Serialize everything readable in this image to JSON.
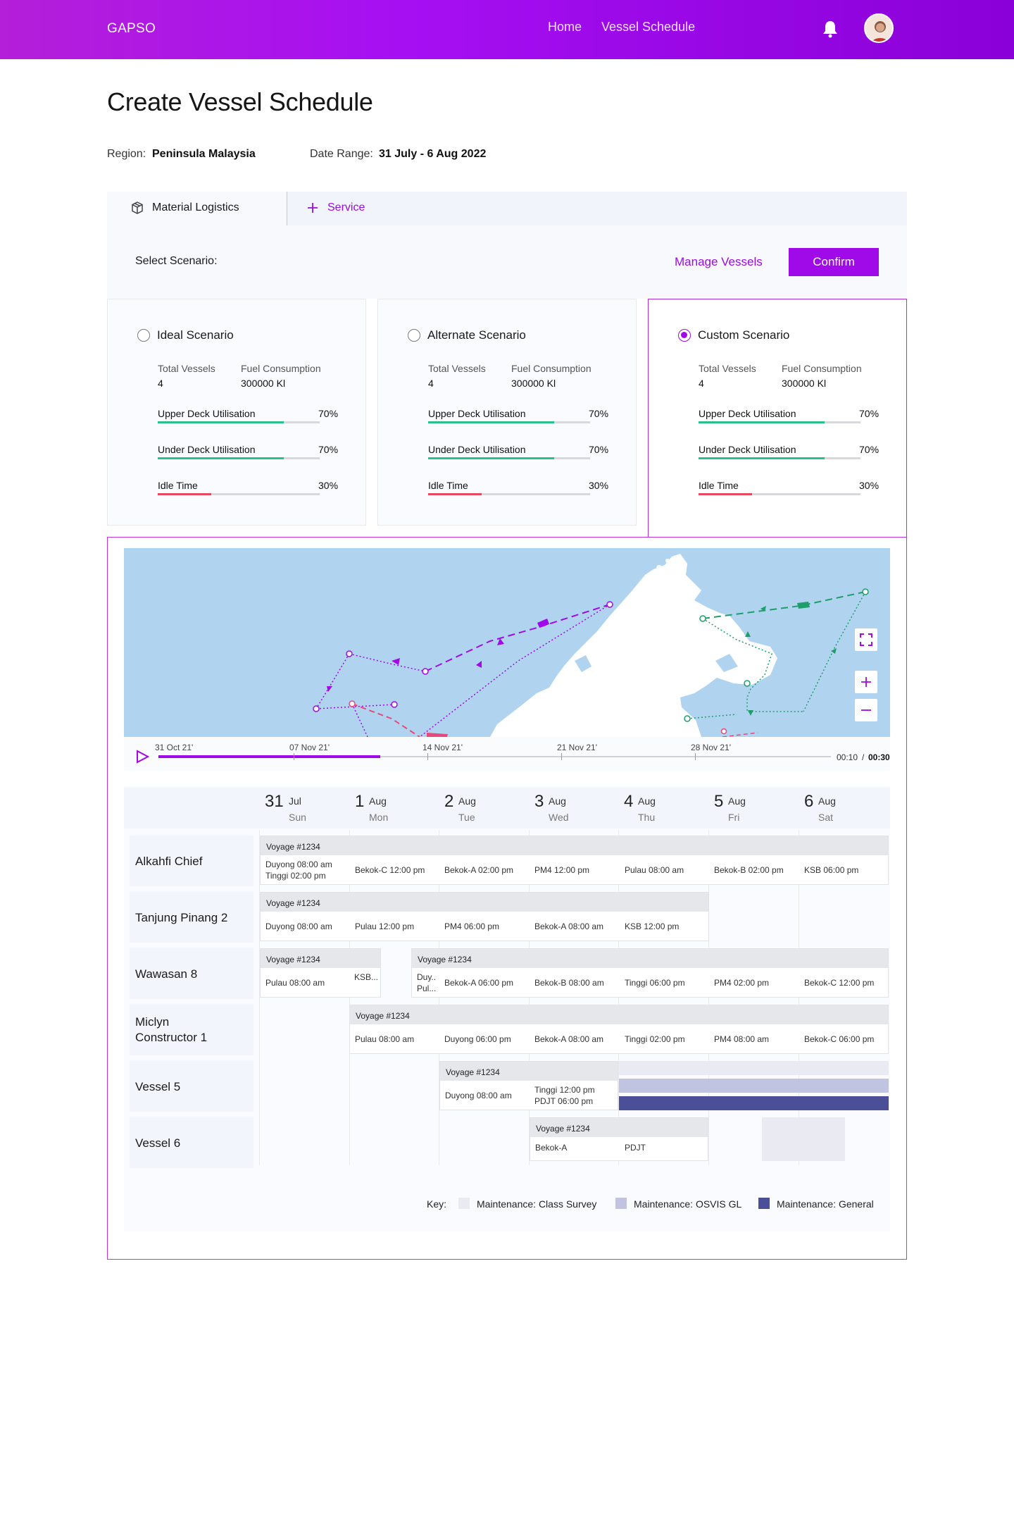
{
  "header": {
    "brand": "GAPSO",
    "nav": [
      "Home",
      "Vessel Schedule"
    ]
  },
  "page": {
    "title": "Create Vessel Schedule",
    "region_label": "Region:",
    "region_value": "Peninsula Malaysia",
    "date_label": "Date Range:",
    "date_value": "31 July - 6 Aug 2022"
  },
  "tabs": {
    "active": "Material Logistics",
    "add": "Service"
  },
  "toolbar": {
    "select_label": "Select Scenario:",
    "manage_label": "Manage Vessels",
    "confirm_label": "Confirm"
  },
  "scenarios": [
    {
      "name": "Ideal Scenario",
      "selected": false,
      "vessels_label": "Total Vessels",
      "vessels": "4",
      "fuel_label": "Fuel Consumption",
      "fuel": "300000 Kl",
      "upper_label": "Upper Deck Utilisation",
      "upper": "70%",
      "under_label": "Under Deck Utilisation",
      "under": "70%",
      "idle_label": "Idle Time",
      "idle": "30%"
    },
    {
      "name": "Alternate Scenario",
      "selected": false,
      "vessels_label": "Total Vessels",
      "vessels": "4",
      "fuel_label": "Fuel Consumption",
      "fuel": "300000 Kl",
      "upper_label": "Upper Deck Utilisation",
      "upper": "70%",
      "under_label": "Under Deck Utilisation",
      "under": "70%",
      "idle_label": "Idle Time",
      "idle": "30%"
    },
    {
      "name": "Custom Scenario",
      "selected": true,
      "vessels_label": "Total Vessels",
      "vessels": "4",
      "fuel_label": "Fuel Consumption",
      "fuel": "300000 Kl",
      "upper_label": "Upper Deck Utilisation",
      "upper": "70%",
      "under_label": "Under Deck Utilisation",
      "under": "70%",
      "idle_label": "Idle Time",
      "idle": "30%"
    }
  ],
  "bar_colors": {
    "good": "#2bbf8a",
    "bad": "#e8485f",
    "accent": "#a10ae8"
  },
  "timeline": {
    "dates": [
      "31 Oct 21'",
      "07 Nov 21'",
      "14 Nov 21'",
      "21 Nov 21'",
      "28 Nov 21'"
    ],
    "current": "00:10",
    "separator": "/",
    "total": "00:30",
    "progress": 0.33
  },
  "schedule": {
    "days": [
      {
        "num": "31",
        "mon": "Jul",
        "dow": "Sun"
      },
      {
        "num": "1",
        "mon": "Aug",
        "dow": "Mon"
      },
      {
        "num": "2",
        "mon": "Aug",
        "dow": "Tue"
      },
      {
        "num": "3",
        "mon": "Aug",
        "dow": "Wed"
      },
      {
        "num": "4",
        "mon": "Aug",
        "dow": "Thu"
      },
      {
        "num": "5",
        "mon": "Aug",
        "dow": "Fri"
      },
      {
        "num": "6",
        "mon": "Aug",
        "dow": "Sat"
      }
    ],
    "vessels": [
      "Alkahfi Chief",
      "Tanjung Pinang 2",
      "Wawasan 8",
      "Miclyn Constructor 1",
      "Vessel 5",
      "Vessel 6"
    ],
    "voyage_label": "Voyage #1234",
    "rows": {
      "r0": [
        "Duyong   08:00 am",
        "Tinggi    02:00 pm",
        "Bekok-C   12:00 pm",
        "Bekok-A   02:00 pm",
        "PM4   12:00 pm",
        "Pulau   08:00 am",
        "Bekok-B   02:00 pm",
        "KSB   06:00 pm"
      ],
      "r1": [
        "Duyong   08:00 am",
        "Pulau   12:00 pm",
        "PM4   06:00 pm",
        "Bekok-A   08:00 am",
        "KSB   12:00 pm"
      ],
      "r2a": [
        "Pulau   08:00 am",
        "KSB..."
      ],
      "r2b": [
        "Duy..",
        "Pul...",
        "Bekok-A   06:00 pm",
        "Bekok-B   08:00 am",
        "Tinggi   06:00 pm",
        "PM4   02:00 pm",
        "Bekok-C   12:00 pm"
      ],
      "r3": [
        "Pulau   08:00 am",
        "Duyong   06:00 pm",
        "Bekok-A   08:00 am",
        "Tinggi   02:00 pm",
        "PM4   08:00 am",
        "Bekok-C   06:00 pm"
      ],
      "r4": [
        "Duyong   08:00 am",
        "Tinggi     12:00 pm",
        "PDJT      06:00 pm"
      ],
      "r5": [
        "Bekok-A",
        "PDJT"
      ]
    }
  },
  "legend": {
    "title": "Key:",
    "items": [
      {
        "label": "Maintenance: Class Survey",
        "color": "#e9eaf2"
      },
      {
        "label": "Maintenance: OSVIS GL",
        "color": "#c1c4e0"
      },
      {
        "label": "Maintenance: General",
        "color": "#4a4f98"
      }
    ]
  }
}
